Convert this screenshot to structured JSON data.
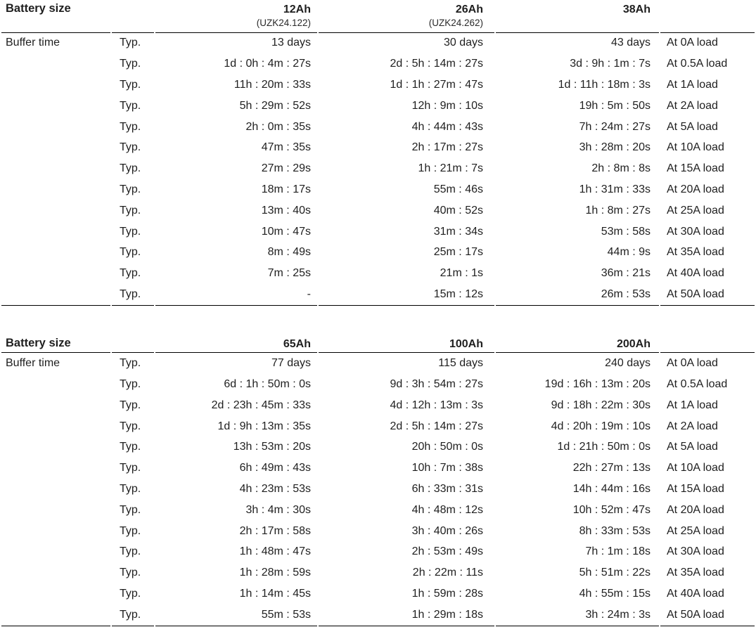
{
  "page": {
    "background_color": "#ffffff",
    "text_color": "#1f1f1f",
    "rule_color": "#000000"
  },
  "tables": [
    {
      "header": {
        "label": "Battery size",
        "columns": [
          {
            "name": "12Ah",
            "sub": "(UZK24.122)"
          },
          {
            "name": "26Ah",
            "sub": "(UZK24.262)"
          },
          {
            "name": "38Ah",
            "sub": ""
          }
        ]
      },
      "section_label": "Buffer time",
      "typ_label": "Typ.",
      "rows": [
        {
          "values": [
            "13 days",
            "30 days",
            "43 days"
          ],
          "load": "At 0A load"
        },
        {
          "values": [
            "1d : 0h : 4m : 27s",
            "2d : 5h : 14m : 27s",
            "3d : 9h : 1m : 7s"
          ],
          "load": "At 0.5A load"
        },
        {
          "values": [
            "11h : 20m : 33s",
            "1d : 1h : 27m : 47s",
            "1d : 11h : 18m : 3s"
          ],
          "load": "At 1A load"
        },
        {
          "values": [
            "5h : 29m : 52s",
            "12h : 9m : 10s",
            "19h : 5m : 50s"
          ],
          "load": "At 2A load"
        },
        {
          "values": [
            "2h : 0m : 35s",
            "4h : 44m : 43s",
            "7h : 24m : 27s"
          ],
          "load": "At 5A load"
        },
        {
          "values": [
            "47m : 35s",
            "2h : 17m : 27s",
            "3h : 28m : 20s"
          ],
          "load": "At 10A load"
        },
        {
          "values": [
            "27m : 29s",
            "1h : 21m : 7s",
            "2h : 8m : 8s"
          ],
          "load": "At 15A load"
        },
        {
          "values": [
            "18m : 17s",
            "55m : 46s",
            "1h : 31m : 33s"
          ],
          "load": "At 20A load"
        },
        {
          "values": [
            "13m : 40s",
            "40m : 52s",
            "1h : 8m : 27s"
          ],
          "load": "At 25A load"
        },
        {
          "values": [
            "10m : 47s",
            "31m : 34s",
            "53m : 58s"
          ],
          "load": "At 30A load"
        },
        {
          "values": [
            "8m : 49s",
            "25m : 17s",
            "44m : 9s"
          ],
          "load": "At 35A load"
        },
        {
          "values": [
            "7m : 25s",
            "21m : 1s",
            "36m : 21s"
          ],
          "load": "At 40A load"
        },
        {
          "values": [
            "-",
            "15m : 12s",
            "26m : 53s"
          ],
          "load": "At 50A load"
        }
      ]
    },
    {
      "header": {
        "label": "Battery size",
        "columns": [
          {
            "name": "65Ah",
            "sub": ""
          },
          {
            "name": "100Ah",
            "sub": ""
          },
          {
            "name": "200Ah",
            "sub": ""
          }
        ]
      },
      "section_label": "Buffer time",
      "typ_label": "Typ.",
      "rows": [
        {
          "values": [
            "77 days",
            "115 days",
            "240 days"
          ],
          "load": "At 0A load"
        },
        {
          "values": [
            "6d : 1h : 50m : 0s",
            "9d : 3h : 54m : 27s",
            "19d : 16h : 13m : 20s"
          ],
          "load": "At 0.5A load"
        },
        {
          "values": [
            "2d : 23h : 45m : 33s",
            "4d : 12h : 13m : 3s",
            "9d : 18h : 22m : 30s"
          ],
          "load": "At 1A load"
        },
        {
          "values": [
            "1d : 9h : 13m : 35s",
            "2d : 5h : 14m : 27s",
            "4d : 20h : 19m : 10s"
          ],
          "load": "At 2A load"
        },
        {
          "values": [
            "13h : 53m : 20s",
            "20h : 50m : 0s",
            "1d : 21h : 50m : 0s"
          ],
          "load": "At 5A load"
        },
        {
          "values": [
            "6h : 49m : 43s",
            "10h : 7m : 38s",
            "22h : 27m : 13s"
          ],
          "load": "At 10A load"
        },
        {
          "values": [
            "4h : 23m : 53s",
            "6h : 33m : 31s",
            "14h : 44m : 16s"
          ],
          "load": "At 15A load"
        },
        {
          "values": [
            "3h : 4m : 30s",
            "4h : 48m : 12s",
            "10h : 52m : 47s"
          ],
          "load": "At 20A load"
        },
        {
          "values": [
            "2h : 17m : 58s",
            "3h : 40m : 26s",
            "8h : 33m : 53s"
          ],
          "load": "At 25A load"
        },
        {
          "values": [
            "1h : 48m : 47s",
            "2h : 53m : 49s",
            "7h : 1m : 18s"
          ],
          "load": "At 30A load"
        },
        {
          "values": [
            "1h : 28m : 59s",
            "2h : 22m : 11s",
            "5h : 51m : 22s"
          ],
          "load": "At 35A load"
        },
        {
          "values": [
            "1h : 14m : 45s",
            "1h : 59m : 28s",
            "4h : 55m : 15s"
          ],
          "load": "At 40A load"
        },
        {
          "values": [
            "55m : 53s",
            "1h : 29m : 18s",
            "3h : 24m : 3s"
          ],
          "load": "At 50A load"
        }
      ]
    }
  ]
}
